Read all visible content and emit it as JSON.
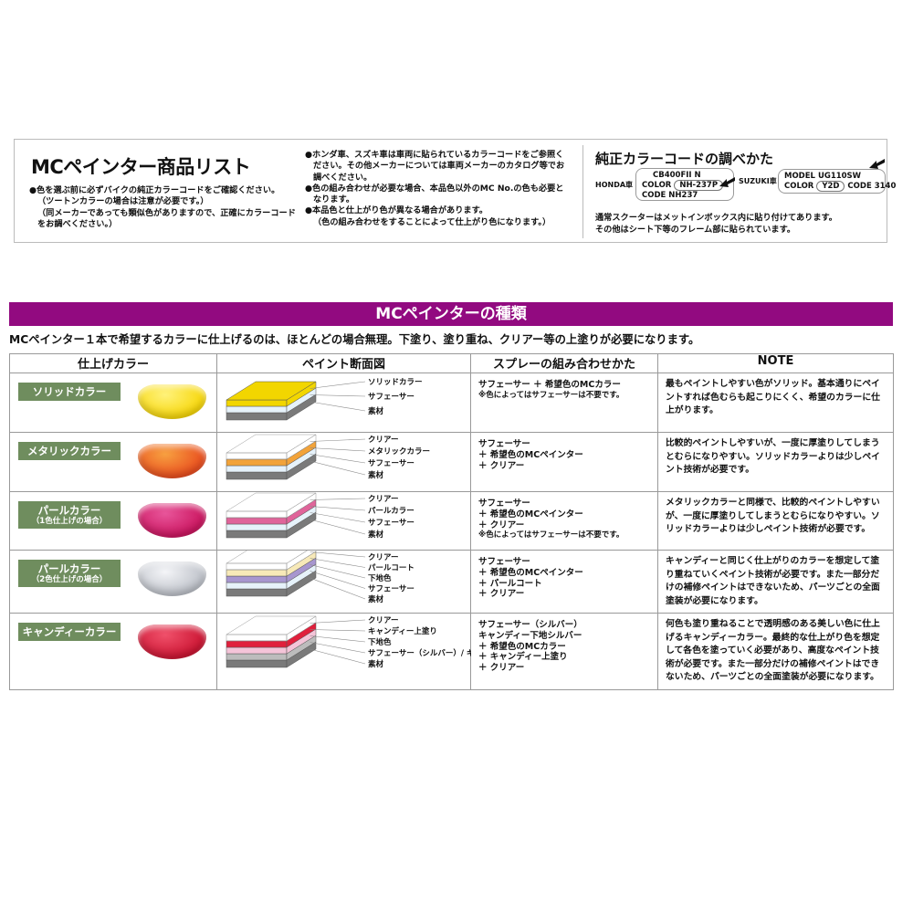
{
  "product_list": {
    "title": "MCペインター商品リスト",
    "notes_left": [
      "●色を選ぶ前に必ずバイクの純正カラーコードをご確認ください。",
      "（ツートンカラーの場合は注意が必要です。）",
      "（同メーカーであっても類似色がありますので、正確にカラーコード",
      "をお調べください。）"
    ],
    "notes_middle": [
      "●ホンダ車、スズキ車は車両に貼られているカラーコードをご参照く",
      "ださい。その他メーカーについては車両メーカーのカタログ等でお",
      "調べください。",
      "●色の組み合わせが必要な場合、本品色以外のMC No.の色も必要と",
      "なります。",
      "●本品色と仕上がり色が異なる場合があります。",
      "（色の組み合わせをすることによって仕上がり色になります。）"
    ]
  },
  "color_code": {
    "title": "純正カラーコードの調べかた",
    "honda": {
      "maker": "HONDA車",
      "model": "CB400FII N",
      "color_label": "COLOR",
      "color": "NH-237P",
      "code_label": "CODE",
      "code": "NH237"
    },
    "suzuki": {
      "maker": "SUZUKI車",
      "model_label": "MODEL",
      "model": "UG110SW",
      "color_label": "COLOR",
      "color": "Y2D",
      "code_label": "CODE",
      "code": "3140"
    },
    "desc": [
      "通常スクーターはメットインボックス内に貼り付けてあります。",
      "その他はシート下等のフレーム部に貼られています。"
    ]
  },
  "types": {
    "banner": "MCペインターの種類",
    "lead": "MCペインター１本で希望するカラーに仕上げるのは、ほとんどの場合無理。下塗り、塗り重ね、クリアー等の上塗りが必要になります。",
    "headers": [
      "仕上げカラー",
      "ペイント断面図",
      "スプレーの組み合わせかた",
      "NOTE"
    ],
    "tag_color": "#6f8d5e",
    "banner_color": "#920a80",
    "rows": [
      {
        "name": "ソリッドカラー",
        "sub": "",
        "swatch": [
          "#fff27a",
          "#f6d400"
        ],
        "layers": [
          {
            "label": "素材",
            "color": "#7a7a7a"
          },
          {
            "label": "サフェーサー",
            "color": "#e6f2fa"
          },
          {
            "label": "ソリッドカラー",
            "color": "#f2d600"
          }
        ],
        "spray": [
          "サフェーサー ＋ 希望色のMCカラー"
        ],
        "spray_note": "※色によってはサフェーサーは不要です。",
        "note": "最もペイントしやすい色がソリッド。基本通りにペイントすれば色むらも起こりにくく、希望のカラーに仕上がります。"
      },
      {
        "name": "メタリックカラー",
        "sub": "",
        "swatch": [
          "#f7a040",
          "#e8471c"
        ],
        "layers": [
          {
            "label": "素材",
            "color": "#7a7a7a"
          },
          {
            "label": "サフェーサー",
            "color": "#e6f2fa"
          },
          {
            "label": "メタリックカラー",
            "color": "#f2a33a"
          },
          {
            "label": "クリアー",
            "color": "clear"
          }
        ],
        "spray": [
          "サフェーサー",
          "＋ 希望色のMCペインター",
          "＋ クリアー"
        ],
        "spray_note": "",
        "note": "比較的ペイントしやすいが、一度に厚塗りしてしまうとむらになりやすい。ソリッドカラーよりは少しペイント技術が必要です。"
      },
      {
        "name": "パールカラー",
        "sub": "（1色仕上げの場合）",
        "swatch": [
          "#e8559a",
          "#c8105a"
        ],
        "layers": [
          {
            "label": "素材",
            "color": "#7a7a7a"
          },
          {
            "label": "サフェーサー",
            "color": "#e6f2fa"
          },
          {
            "label": "パールカラー",
            "color": "#e0649a"
          },
          {
            "label": "クリアー",
            "color": "clear"
          }
        ],
        "spray": [
          "サフェーサー",
          "＋ 希望色のMCペインター",
          "＋ クリアー"
        ],
        "spray_note": "※色によってはサフェーサーは不要です。",
        "note": "メタリックカラーと同様で、比較的ペイントしやすいが、一度に厚塗りしてしまうとむらになりやすい。ソリッドカラーよりは少しペイント技術が必要です。"
      },
      {
        "name": "パールカラー",
        "sub": "（2色仕上げの場合）",
        "swatch": [
          "#f4f5f8",
          "#b8bcc4"
        ],
        "layers": [
          {
            "label": "素材",
            "color": "#7a7a7a"
          },
          {
            "label": "サフェーサー",
            "color": "#e6f2fa"
          },
          {
            "label": "下地色",
            "color": "#a796cf"
          },
          {
            "label": "パールコート",
            "color": "#f7e9b8"
          },
          {
            "label": "クリアー",
            "color": "clear"
          }
        ],
        "spray": [
          "サフェーサー",
          "＋ 希望色のMCペインター",
          "＋ パールコート",
          "＋ クリアー"
        ],
        "spray_note": "",
        "note": "キャンディーと同じく仕上がりのカラーを想定して塗り重ねていくペイント技術が必要です。また一部分だけの補修ペイントはできないため、パーツごとの全面塗装が必要になります。"
      },
      {
        "name": "キャンディーカラー",
        "sub": "",
        "swatch": [
          "#f0506a",
          "#c8102e"
        ],
        "layers": [
          {
            "label": "素材",
            "color": "#7a7a7a"
          },
          {
            "label": "サフェーサー（シルバー）/ キャンディー下地シルバー",
            "color": "#bcbcbc"
          },
          {
            "label": "下地色",
            "color": "#f4c4d8"
          },
          {
            "label": "キャンディー上塗り",
            "color": "#e0203c"
          },
          {
            "label": "クリアー",
            "color": "clear"
          }
        ],
        "spray": [
          "サフェーサー（シルバー）",
          "キャンディー下地シルバー",
          "＋ 希望色のMCカラー",
          "＋ キャンディー上塗り",
          "＋ クリアー"
        ],
        "spray_note": "",
        "note": "何色も塗り重ねることで透明感のある美しい色に仕上げるキャンディーカラー。最終的な仕上がり色を想定して各色を塗っていく必要があり、高度なペイント技術が必要です。また一部分だけの補修ペイントはできないため、パーツごとの全面塗装が必要になります。"
      }
    ]
  }
}
